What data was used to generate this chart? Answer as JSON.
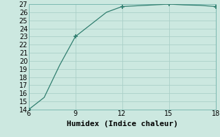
{
  "x": [
    6,
    7,
    8,
    9,
    10,
    11,
    12,
    13,
    14,
    15,
    16,
    17,
    18
  ],
  "y": [
    14,
    15.5,
    19.5,
    23,
    24.5,
    26.0,
    26.7,
    26.8,
    26.9,
    27.0,
    26.9,
    26.85,
    26.7
  ],
  "line_color": "#2e7d6e",
  "marker_color": "#2e7d6e",
  "bg_color": "#cce8e0",
  "grid_color": "#aacfc8",
  "xlabel": "Humidex (Indice chaleur)",
  "xlabel_fontsize": 8,
  "tick_fontsize": 7,
  "xlim": [
    6,
    18
  ],
  "ylim": [
    14,
    27
  ],
  "xticks": [
    6,
    9,
    12,
    15,
    18
  ],
  "yticks": [
    14,
    15,
    16,
    17,
    18,
    19,
    20,
    21,
    22,
    23,
    24,
    25,
    26,
    27
  ],
  "marker_x": [
    6,
    9,
    12,
    15,
    18
  ],
  "marker_y": [
    14,
    23,
    26.7,
    27.0,
    26.7
  ]
}
